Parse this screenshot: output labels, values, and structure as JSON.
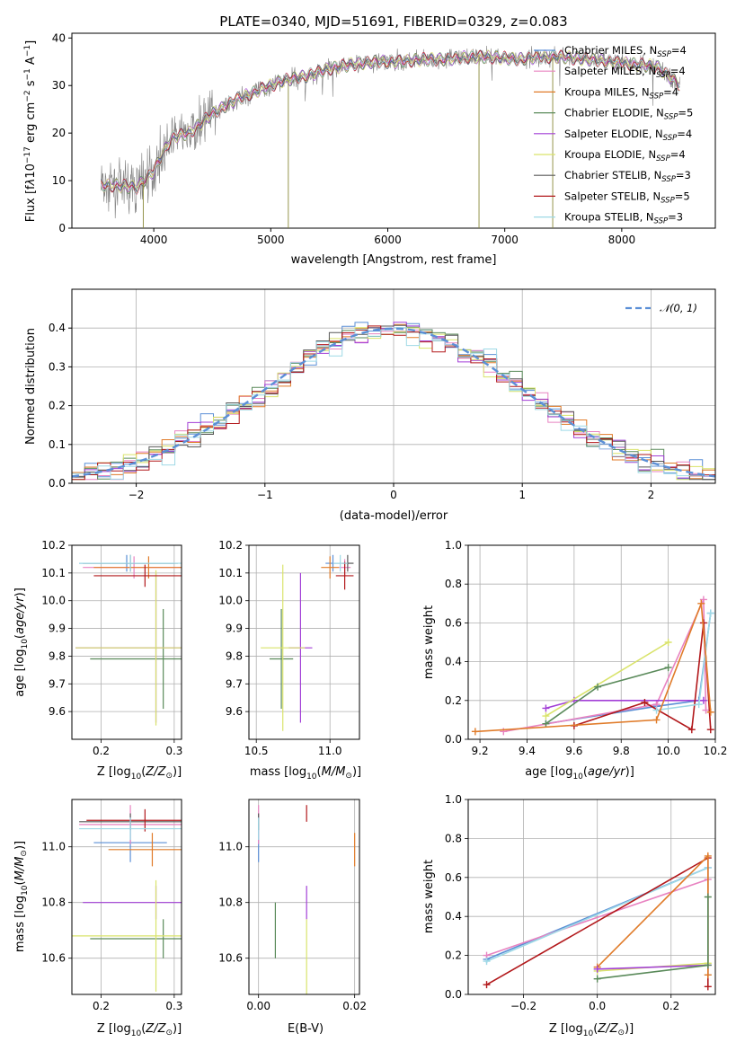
{
  "chart_data": [
    {
      "type": "line",
      "title": "PLATE=0340, MJD=51691, FIBERID=0329, z=0.083",
      "xlabel": "wavelength [Angstrom, rest frame]",
      "ylabel": "Flux [fλ10⁻¹⁷ erg cm⁻² s⁻¹ A⁻¹]",
      "xlim": [
        3300,
        8800
      ],
      "ylim": [
        0,
        41
      ],
      "xticks": [
        4000,
        5000,
        6000,
        7000,
        8000
      ],
      "yticks": [
        0,
        10,
        20,
        30,
        40
      ],
      "grid": false,
      "legend_position": "right",
      "continuum": {
        "x": [
          3550,
          3700,
          3850,
          4000,
          4150,
          4300,
          4500,
          4700,
          4900,
          5100,
          5300,
          5500,
          5700,
          5900,
          6100,
          6300,
          6500,
          6700,
          6900,
          7100,
          7300,
          7500,
          7700,
          7900,
          8100,
          8300,
          8500
        ],
        "y": [
          9,
          9,
          8.5,
          12,
          19,
          20,
          24,
          27,
          29,
          31,
          32,
          33.5,
          34.5,
          35,
          35,
          35.5,
          35.5,
          36,
          36,
          35.5,
          36,
          36,
          35.5,
          35,
          34.5,
          34,
          30
        ]
      },
      "spikes": [
        {
          "x": 5150,
          "y": 0
        },
        {
          "x": 6780,
          "y": 0
        },
        {
          "x": 7410,
          "y": 0
        },
        {
          "x": 3910,
          "y": 0
        }
      ],
      "series": [
        {
          "name": "Chabrier MILES, N_SSP=4",
          "label_main": "Chabrier MILES, N",
          "label_sub": "SSP",
          "label_tail": "=4",
          "color": "#5b8fd6"
        },
        {
          "name": "Salpeter MILES, N_SSP=4",
          "label_main": "Salpeter MILES, N",
          "label_sub": "SSP",
          "label_tail": "=4",
          "color": "#e883c1"
        },
        {
          "name": "Kroupa MILES, N_SSP=4",
          "label_main": "Kroupa MILES, N",
          "label_sub": "SSP",
          "label_tail": "=4",
          "color": "#e07b29"
        },
        {
          "name": "Chabrier ELODIE, N_SSP=5",
          "label_main": "Chabrier ELODIE, N",
          "label_sub": "SSP",
          "label_tail": "=5",
          "color": "#5a8a5a"
        },
        {
          "name": "Salpeter ELODIE, N_SSP=4",
          "label_main": "Salpeter ELODIE, N",
          "label_sub": "SSP",
          "label_tail": "=4",
          "color": "#a23fd6"
        },
        {
          "name": "Kroupa ELODIE, N_SSP=4",
          "label_main": "Kroupa ELODIE, N",
          "label_sub": "SSP",
          "label_tail": "=4",
          "color": "#d9e36a"
        },
        {
          "name": "Chabrier STELIB, N_SSP=3",
          "label_main": "Chabrier STELIB, N",
          "label_sub": "SSP",
          "label_tail": "=3",
          "color": "#595959"
        },
        {
          "name": "Salpeter STELIB, N_SSP=5",
          "label_main": "Salpeter STELIB, N",
          "label_sub": "SSP",
          "label_tail": "=5",
          "color": "#b2181b"
        },
        {
          "name": "Kroupa STELIB, N_SSP=3",
          "label_main": "Kroupa STELIB, N",
          "label_sub": "SSP",
          "label_tail": "=3",
          "color": "#9ed9e6"
        }
      ]
    },
    {
      "type": "line",
      "xlabel": "(data-model)/error",
      "ylabel": "Normed distribution",
      "xlim": [
        -2.5,
        2.5
      ],
      "ylim": [
        0,
        0.5
      ],
      "xticks": [
        -2,
        -1,
        0,
        1,
        2
      ],
      "xtick_labels": [
        "−2",
        "−1",
        "0",
        "1",
        "2"
      ],
      "yticks": [
        0.0,
        0.1,
        0.2,
        0.3,
        0.4
      ],
      "ytick_labels": [
        "0.0",
        "0.1",
        "0.2",
        "0.3",
        "0.4"
      ],
      "grid": true,
      "legend_position": "top-right",
      "gaussian_label": "𝒩(0, 1)",
      "gaussian_color": "#5b8fd6",
      "bins": {
        "start": -2.5,
        "width": 0.1
      }
    },
    {
      "type": "scatter",
      "xlabel": "Z [log₁₀(Z/Z⊙)]",
      "ylabel": "age  [log₁₀(age/yr)]",
      "xlim": [
        0.16,
        0.31
      ],
      "ylim": [
        9.5,
        10.2
      ],
      "xticks": [
        0.2,
        0.3
      ],
      "xtick_labels": [
        "0.2",
        "0.3"
      ],
      "yticks": [
        9.6,
        9.7,
        9.8,
        9.9,
        10.0,
        10.1,
        10.2
      ],
      "ytick_labels": [
        "9.6",
        "9.7",
        "9.8",
        "9.9",
        "10.0",
        "10.1",
        "10.2"
      ],
      "grid": true,
      "points": [
        {
          "x": 0.235,
          "y": 10.135,
          "xerr": 0.065,
          "yerr": 0.03,
          "c": "#5b8fd6"
        },
        {
          "x": 0.245,
          "y": 10.12,
          "xerr": 0.07,
          "yerr": 0.04,
          "c": "#e883c1"
        },
        {
          "x": 0.265,
          "y": 10.12,
          "xerr": 0.075,
          "yerr": 0.04,
          "c": "#e07b29"
        },
        {
          "x": 0.285,
          "y": 9.79,
          "xerr": 0.1,
          "yerr": 0.18,
          "c": "#5a8a5a"
        },
        {
          "x": 0.275,
          "y": 9.83,
          "xerr": 0.11,
          "yerr": 0.27,
          "c": "#a23fd6"
        },
        {
          "x": 0.275,
          "y": 9.83,
          "xerr": 0.11,
          "yerr": 0.28,
          "c": "#d9e36a"
        },
        {
          "x": 0.24,
          "y": 10.135,
          "xerr": 0.065,
          "yerr": 0.03,
          "c": "#595959"
        },
        {
          "x": 0.26,
          "y": 10.09,
          "xerr": 0.07,
          "yerr": 0.04,
          "c": "#b2181b"
        },
        {
          "x": 0.24,
          "y": 10.135,
          "xerr": 0.07,
          "yerr": 0.03,
          "c": "#9ed9e6"
        }
      ]
    },
    {
      "type": "scatter",
      "xlabel": "mass [log₁₀(M/M⊙)]",
      "xlim": [
        10.45,
        11.2
      ],
      "ylim": [
        9.5,
        10.2
      ],
      "xticks": [
        10.5,
        11.0
      ],
      "xtick_labels": [
        "10.5",
        "11.0"
      ],
      "yticks": [
        9.6,
        9.7,
        9.8,
        9.9,
        10.0,
        10.1,
        10.2
      ],
      "ytick_labels": [
        "9.6",
        "9.7",
        "9.8",
        "9.9",
        "10.0",
        "10.1",
        "10.2"
      ],
      "grid": true,
      "points": [
        {
          "x": 11.02,
          "y": 10.135,
          "xerr": 0.05,
          "yerr": 0.03,
          "c": "#5b8fd6"
        },
        {
          "x": 11.1,
          "y": 10.12,
          "xerr": 0.04,
          "yerr": 0.03,
          "c": "#e883c1"
        },
        {
          "x": 11.0,
          "y": 10.12,
          "xerr": 0.06,
          "yerr": 0.04,
          "c": "#e07b29"
        },
        {
          "x": 10.67,
          "y": 9.79,
          "xerr": 0.08,
          "yerr": 0.18,
          "c": "#5a8a5a"
        },
        {
          "x": 10.8,
          "y": 9.83,
          "xerr": 0.08,
          "yerr": 0.27,
          "c": "#a23fd6"
        },
        {
          "x": 10.68,
          "y": 9.83,
          "xerr": 0.15,
          "yerr": 0.3,
          "c": "#d9e36a"
        },
        {
          "x": 11.12,
          "y": 10.135,
          "xerr": 0.04,
          "yerr": 0.03,
          "c": "#595959"
        },
        {
          "x": 11.1,
          "y": 10.09,
          "xerr": 0.06,
          "yerr": 0.05,
          "c": "#b2181b"
        },
        {
          "x": 11.07,
          "y": 10.135,
          "xerr": 0.05,
          "yerr": 0.03,
          "c": "#9ed9e6"
        }
      ]
    },
    {
      "type": "line",
      "xlabel": "age  [log₁₀(age/yr)]",
      "ylabel": "mass weight",
      "xlim": [
        9.15,
        10.2
      ],
      "ylim": [
        0,
        1
      ],
      "xticks": [
        9.2,
        9.4,
        9.6,
        9.8,
        10.0,
        10.2
      ],
      "xtick_labels": [
        "9.2",
        "9.4",
        "9.6",
        "9.8",
        "10.0",
        "10.2"
      ],
      "yticks": [
        0,
        0.2,
        0.4,
        0.6,
        0.8,
        1.0
      ],
      "ytick_labels": [
        "0.0",
        "0.2",
        "0.4",
        "0.6",
        "0.8",
        "1.0"
      ],
      "grid": true,
      "series": [
        {
          "c": "#5b8fd6",
          "x": [
            9.48,
            9.95,
            10.13,
            10.18
          ],
          "y": [
            0.08,
            0.17,
            0.2,
            0.65
          ]
        },
        {
          "c": "#e883c1",
          "x": [
            9.3,
            9.95,
            10.15,
            10.16
          ],
          "y": [
            0.04,
            0.18,
            0.72,
            0.15
          ]
        },
        {
          "c": "#a23fd6",
          "x": [
            9.48,
            9.6,
            10.15
          ],
          "y": [
            0.16,
            0.2,
            0.2
          ]
        },
        {
          "c": "#d9e36a",
          "x": [
            9.48,
            10.0
          ],
          "y": [
            0.12,
            0.5
          ]
        },
        {
          "c": "#5a8a5a",
          "x": [
            9.48,
            9.7,
            10.0
          ],
          "y": [
            0.08,
            0.27,
            0.37
          ]
        },
        {
          "c": "#b2181b",
          "x": [
            9.6,
            9.9,
            10.1,
            10.15,
            10.18
          ],
          "y": [
            0.07,
            0.19,
            0.05,
            0.6,
            0.05
          ]
        },
        {
          "c": "#9ed9e6",
          "x": [
            9.95,
            10.13,
            10.18
          ],
          "y": [
            0.15,
            0.18,
            0.65
          ]
        },
        {
          "c": "#e07b29",
          "x": [
            9.18,
            9.95,
            10.14,
            10.18
          ],
          "y": [
            0.04,
            0.1,
            0.7,
            0.14
          ]
        }
      ]
    },
    {
      "type": "scatter",
      "xlabel": "Z [log₁₀(Z/Z⊙)]",
      "ylabel": "mass [log₁₀(M/M⊙)]",
      "xlim": [
        0.16,
        0.31
      ],
      "ylim": [
        10.47,
        11.17
      ],
      "xticks": [
        0.2,
        0.3
      ],
      "xtick_labels": [
        "0.2",
        "0.3"
      ],
      "yticks": [
        10.6,
        10.8,
        11.0
      ],
      "ytick_labels": [
        "10.6",
        "10.8",
        "11.0"
      ],
      "grid": true,
      "points": [
        {
          "x": 0.24,
          "y": 11.015,
          "xerr": 0.05,
          "yerr": 0.07,
          "c": "#5b8fd6"
        },
        {
          "x": 0.24,
          "y": 11.08,
          "xerr": 0.07,
          "yerr": 0.07,
          "c": "#e883c1"
        },
        {
          "x": 0.27,
          "y": 10.99,
          "xerr": 0.06,
          "yerr": 0.06,
          "c": "#e07b29"
        },
        {
          "x": 0.285,
          "y": 10.67,
          "xerr": 0.1,
          "yerr": 0.07,
          "c": "#5a8a5a"
        },
        {
          "x": 0.275,
          "y": 10.8,
          "xerr": 0.1,
          "yerr": 0.06,
          "c": "#a23fd6"
        },
        {
          "x": 0.275,
          "y": 10.68,
          "xerr": 0.12,
          "yerr": 0.2,
          "c": "#d9e36a"
        },
        {
          "x": 0.24,
          "y": 11.09,
          "xerr": 0.07,
          "yerr": 0.03,
          "c": "#595959"
        },
        {
          "x": 0.26,
          "y": 11.095,
          "xerr": 0.08,
          "yerr": 0.04,
          "c": "#b2181b"
        },
        {
          "x": 0.24,
          "y": 11.065,
          "xerr": 0.07,
          "yerr": 0.04,
          "c": "#9ed9e6"
        }
      ]
    },
    {
      "type": "scatter",
      "xlabel": "E(B-V)",
      "xlim": [
        -0.002,
        0.021
      ],
      "ylim": [
        10.47,
        11.17
      ],
      "xticks": [
        0.0,
        0.02
      ],
      "xtick_labels": [
        "0.00",
        "0.02"
      ],
      "yticks": [
        10.6,
        10.8,
        11.0
      ],
      "ytick_labels": [
        "10.6",
        "10.8",
        "11.0"
      ],
      "grid": true,
      "points": [
        {
          "x": 0.0,
          "y": 11.015,
          "xerr": 0,
          "yerr": 0.07,
          "c": "#5b8fd6"
        },
        {
          "x": 0.0,
          "y": 11.08,
          "xerr": 0,
          "yerr": 0.07,
          "c": "#e883c1"
        },
        {
          "x": 0.02,
          "y": 10.99,
          "xerr": 0,
          "yerr": 0.06,
          "c": "#e07b29"
        },
        {
          "x": 0.0035,
          "y": 10.7,
          "xerr": 0,
          "yerr": 0.1,
          "c": "#5a8a5a"
        },
        {
          "x": 0.01,
          "y": 10.8,
          "xerr": 0,
          "yerr": 0.06,
          "c": "#a23fd6"
        },
        {
          "x": 0.01,
          "y": 10.6,
          "xerr": 0,
          "yerr": 0.14,
          "c": "#d9e36a"
        },
        {
          "x": 0.0,
          "y": 11.09,
          "xerr": 0,
          "yerr": 0.03,
          "c": "#595959"
        },
        {
          "x": 0.01,
          "y": 11.12,
          "xerr": 0,
          "yerr": 0.03,
          "c": "#b2181b"
        },
        {
          "x": 0.0,
          "y": 11.065,
          "xerr": 0,
          "yerr": 0.04,
          "c": "#9ed9e6"
        }
      ]
    },
    {
      "type": "line",
      "xlabel": "Z [log₁₀(Z/Z⊙)]",
      "ylabel": "mass weight",
      "xlim": [
        -0.35,
        0.32
      ],
      "ylim": [
        0,
        1
      ],
      "xticks": [
        -0.2,
        0.0,
        0.2
      ],
      "xtick_labels": [
        "−0.2",
        "0.0",
        "0.2"
      ],
      "yticks": [
        0,
        0.2,
        0.4,
        0.6,
        0.8,
        1.0
      ],
      "ytick_labels": [
        "0.0",
        "0.2",
        "0.4",
        "0.6",
        "0.8",
        "1.0"
      ],
      "grid": true,
      "series": [
        {
          "c": "#5b8fd6",
          "x": [
            -0.3,
            0.3
          ],
          "y": [
            0.18,
            0.65
          ]
        },
        {
          "c": "#e883c1",
          "x": [
            -0.3,
            0.3
          ],
          "y": [
            0.2,
            0.59
          ]
        },
        {
          "c": "#9ed9e6",
          "x": [
            -0.3,
            0.3,
            0.3
          ],
          "y": [
            0.17,
            0.65,
            0.1
          ]
        },
        {
          "c": "#b2181b",
          "x": [
            -0.3,
            0.3,
            0.3
          ],
          "y": [
            0.05,
            0.7,
            0.04
          ]
        },
        {
          "c": "#e07b29",
          "x": [
            0.0,
            0.3,
            0.3
          ],
          "y": [
            0.14,
            0.71,
            0.1
          ]
        },
        {
          "c": "#d9e36a",
          "x": [
            0.0,
            0.3
          ],
          "y": [
            0.12,
            0.16
          ]
        },
        {
          "c": "#a23fd6",
          "x": [
            0.0,
            0.3
          ],
          "y": [
            0.13,
            0.15
          ]
        },
        {
          "c": "#5a8a5a",
          "x": [
            0.0,
            0.3,
            0.3
          ],
          "y": [
            0.08,
            0.15,
            0.5
          ]
        }
      ]
    }
  ]
}
